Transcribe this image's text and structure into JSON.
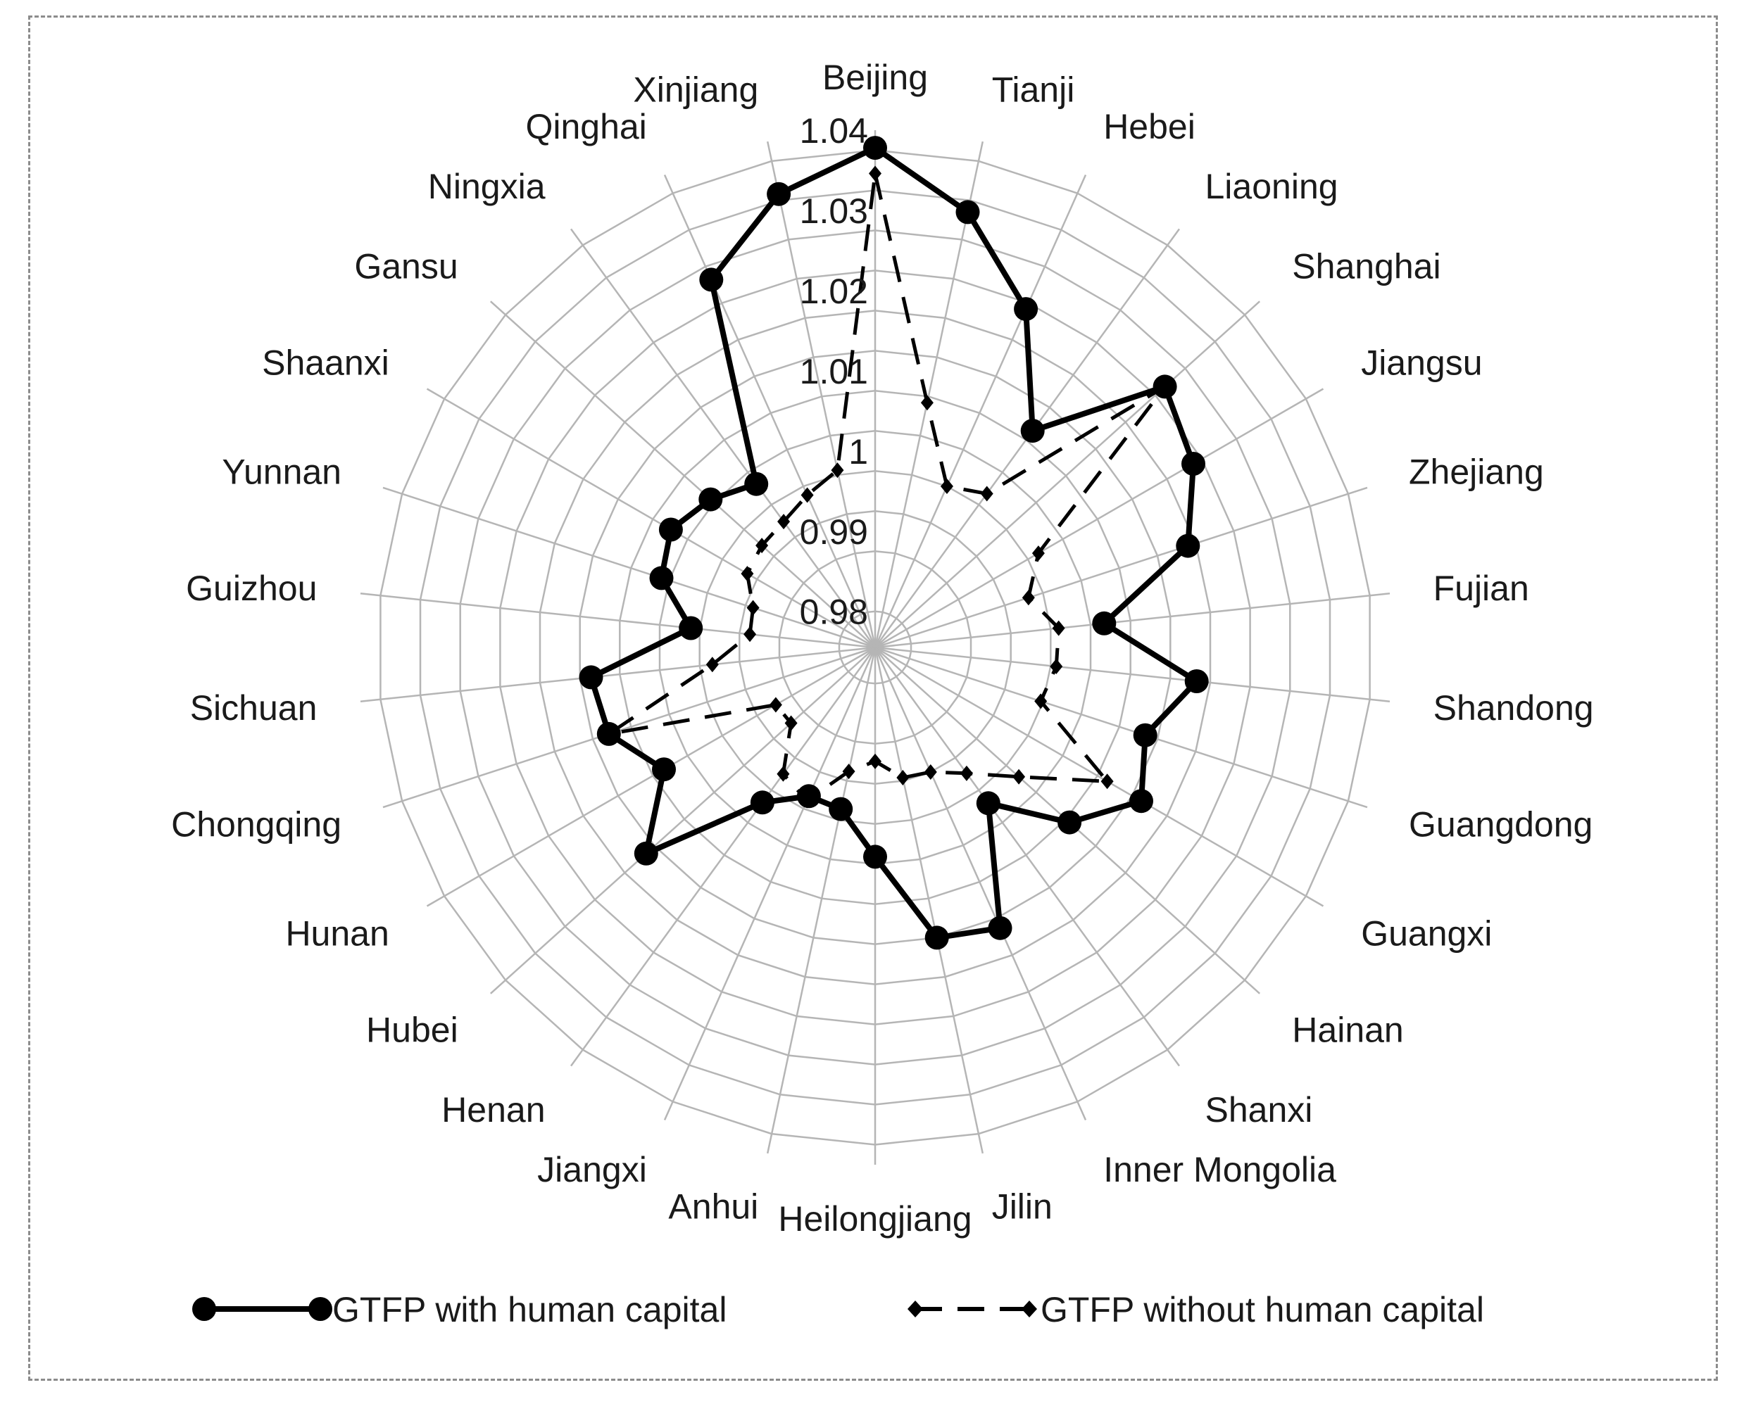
{
  "chart_data": {
    "type": "radar",
    "title": "",
    "categories": [
      "Beijing",
      "Tianji",
      "Hebei",
      "Liaoning",
      "Shanghai",
      "Jiangsu",
      "Zhejiang",
      "Fujian",
      "Shandong",
      "Guangdong",
      "Guangxi",
      "Hainan",
      "Shanxi",
      "Inner Mongolia",
      "Jilin",
      "Heilongjiang",
      "Anhui",
      "Jiangxi",
      "Henan",
      "Hubei",
      "Hunan",
      "Chongqing",
      "Sichuan",
      "Guizhou",
      "Yunnan",
      "Shaanxi",
      "Gansu",
      "Ningxia",
      "Qinghai",
      "Xinjiang"
    ],
    "ticks": [
      "0.98",
      "0.99",
      "1",
      "1.01",
      "1.02",
      "1.03",
      "1.04"
    ],
    "rlim": [
      0.9755,
      1.04
    ],
    "grid": true,
    "legend_position": "bottom",
    "series": [
      {
        "name": "GTFP with human capital",
        "style": "solid",
        "marker": "circle",
        "color": "#000000",
        "values": [
          1.0378,
          1.031,
          1.0217,
          1.0089,
          1.0241,
          1.0213,
          1.0165,
          1.0042,
          1.0158,
          1.0109,
          1.0138,
          1.0081,
          0.9995,
          1.0138,
          1.0125,
          1.0016,
          0.9961,
          0.9958,
          0.9994,
          1.0139,
          1.0059,
          1.0104,
          1.0111,
          0.9986,
          1.0035,
          1.0049,
          1.0031,
          1.0007,
          1.0257,
          1.0333
        ]
      },
      {
        "name": "GTFP without human capital",
        "style": "dashed",
        "marker": "diamond",
        "color": "#000000",
        "values": [
          1.0346,
          1.0067,
          0.9975,
          0.9992,
          1.0241,
          0.999,
          0.9956,
          0.9985,
          0.9982,
          0.9972,
          1.0089,
          0.9996,
          0.9949,
          0.9925,
          0.9921,
          0.9897,
          0.9913,
          0.9964,
          0.995,
          0.9896,
          0.9898,
          1.0104,
          0.9959,
          0.9912,
          0.9915,
          0.9939,
          0.9945,
          0.9949,
          0.9963,
          0.9981
        ]
      }
    ]
  },
  "legend": {
    "items": [
      {
        "label": "GTFP with human capital"
      },
      {
        "label": "GTFP without human capital"
      }
    ]
  }
}
